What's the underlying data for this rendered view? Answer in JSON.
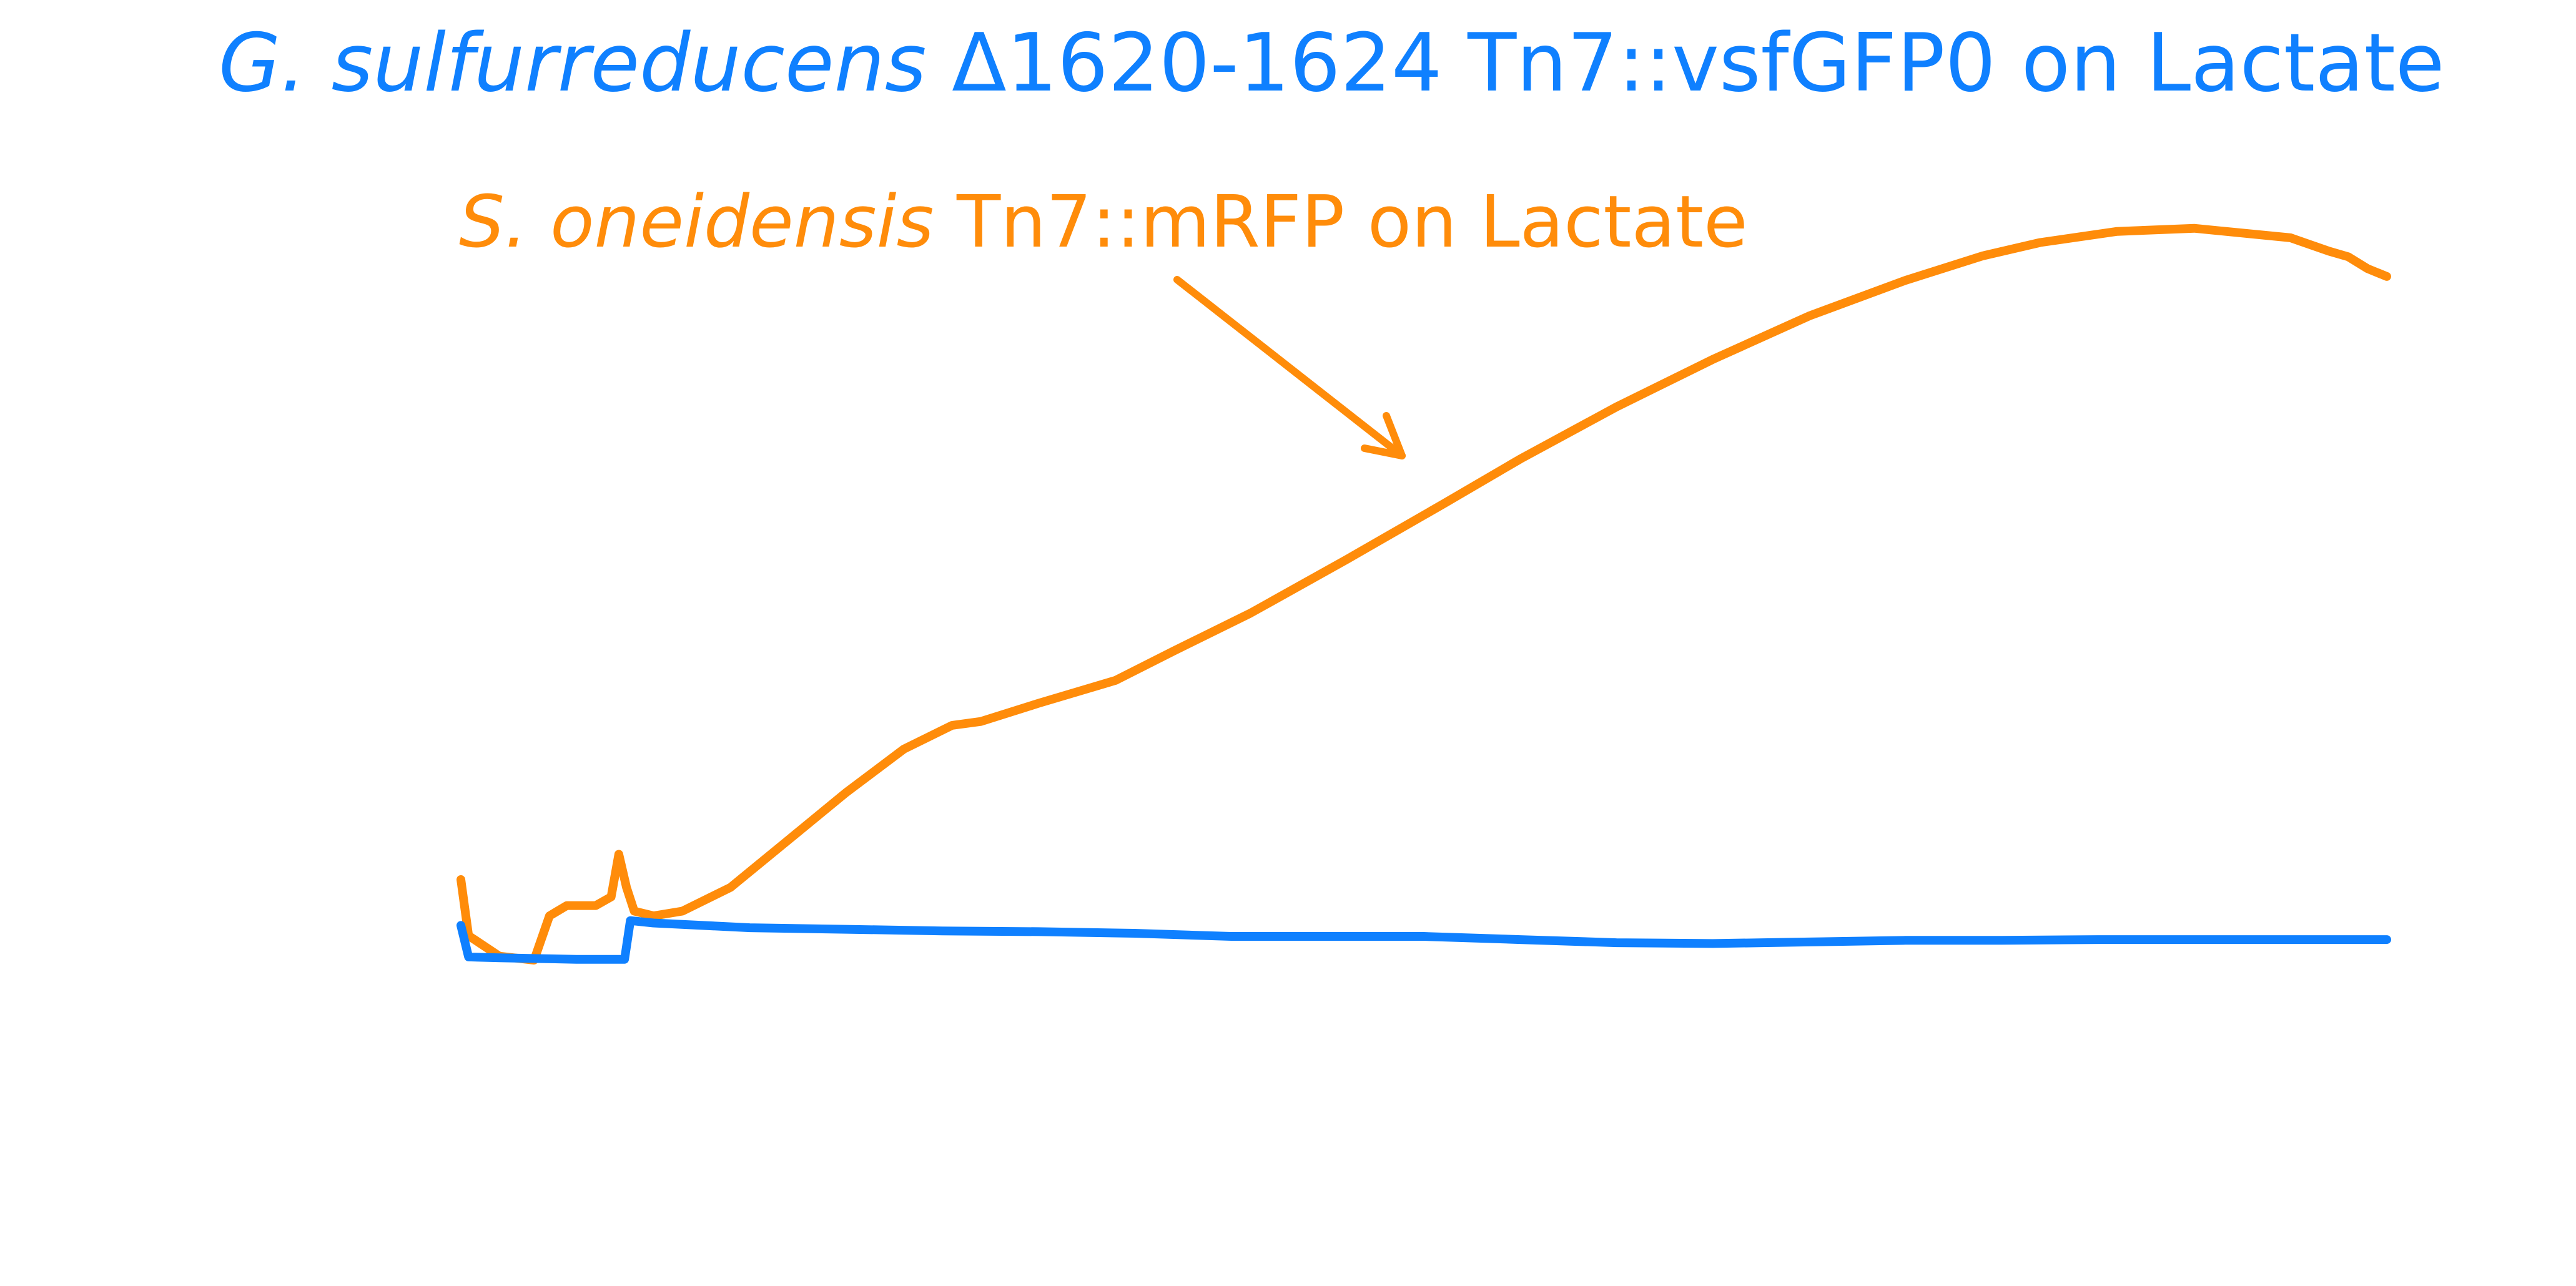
{
  "chart_data": {
    "type": "line",
    "title": "",
    "xlabel": "",
    "ylabel": "",
    "axes_visible": false,
    "grid": false,
    "legend": "none",
    "annotations": [
      {
        "series": "G. sulfurreducens",
        "italic": "G. sulfurreducens",
        "rest": " Δ1620-1624 Tn7::vsfGFP0 on Lactate",
        "color": "#0f80ff"
      },
      {
        "series": "S. oneidensis",
        "italic": "S. oneidensis",
        "rest": " Tn7::mRFP on Lactate",
        "color": "#ff8c0a",
        "has_arrow": true
      }
    ],
    "series": [
      {
        "name": "S. oneidensis Tn7::mRFP on Lactate",
        "color": "#ff8c0a",
        "x": [
          0.0,
          0.004,
          0.02,
          0.038,
          0.046,
          0.055,
          0.07,
          0.078,
          0.082,
          0.086,
          0.09,
          0.1,
          0.115,
          0.14,
          0.17,
          0.2,
          0.23,
          0.255,
          0.27,
          0.3,
          0.34,
          0.37,
          0.41,
          0.46,
          0.51,
          0.55,
          0.6,
          0.65,
          0.7,
          0.75,
          0.79,
          0.82,
          0.86,
          0.9,
          0.95,
          0.97,
          0.98,
          0.99,
          1.0
        ],
        "y": [
          0.102,
          0.031,
          0.005,
          0.0,
          0.056,
          0.069,
          0.069,
          0.08,
          0.134,
          0.092,
          0.062,
          0.056,
          0.062,
          0.092,
          0.152,
          0.212,
          0.267,
          0.297,
          0.302,
          0.325,
          0.354,
          0.391,
          0.439,
          0.507,
          0.577,
          0.634,
          0.7,
          0.76,
          0.815,
          0.86,
          0.891,
          0.908,
          0.922,
          0.926,
          0.914,
          0.897,
          0.89,
          0.875,
          0.865
        ]
      },
      {
        "name": "G. sulfurreducens Δ1620-1624 Tn7::vsfGFP0 on Lactate",
        "color": "#0f80ff",
        "x": [
          0.0,
          0.004,
          0.02,
          0.04,
          0.06,
          0.085,
          0.088,
          0.1,
          0.15,
          0.2,
          0.25,
          0.3,
          0.35,
          0.4,
          0.45,
          0.5,
          0.55,
          0.6,
          0.65,
          0.7,
          0.75,
          0.8,
          0.85,
          0.9,
          0.95,
          1.0
        ],
        "y": [
          0.044,
          0.004,
          0.003,
          0.002,
          0.001,
          0.001,
          0.05,
          0.047,
          0.041,
          0.039,
          0.037,
          0.036,
          0.034,
          0.03,
          0.03,
          0.03,
          0.026,
          0.022,
          0.021,
          0.023,
          0.025,
          0.025,
          0.026,
          0.026,
          0.026,
          0.026
        ]
      }
    ]
  }
}
